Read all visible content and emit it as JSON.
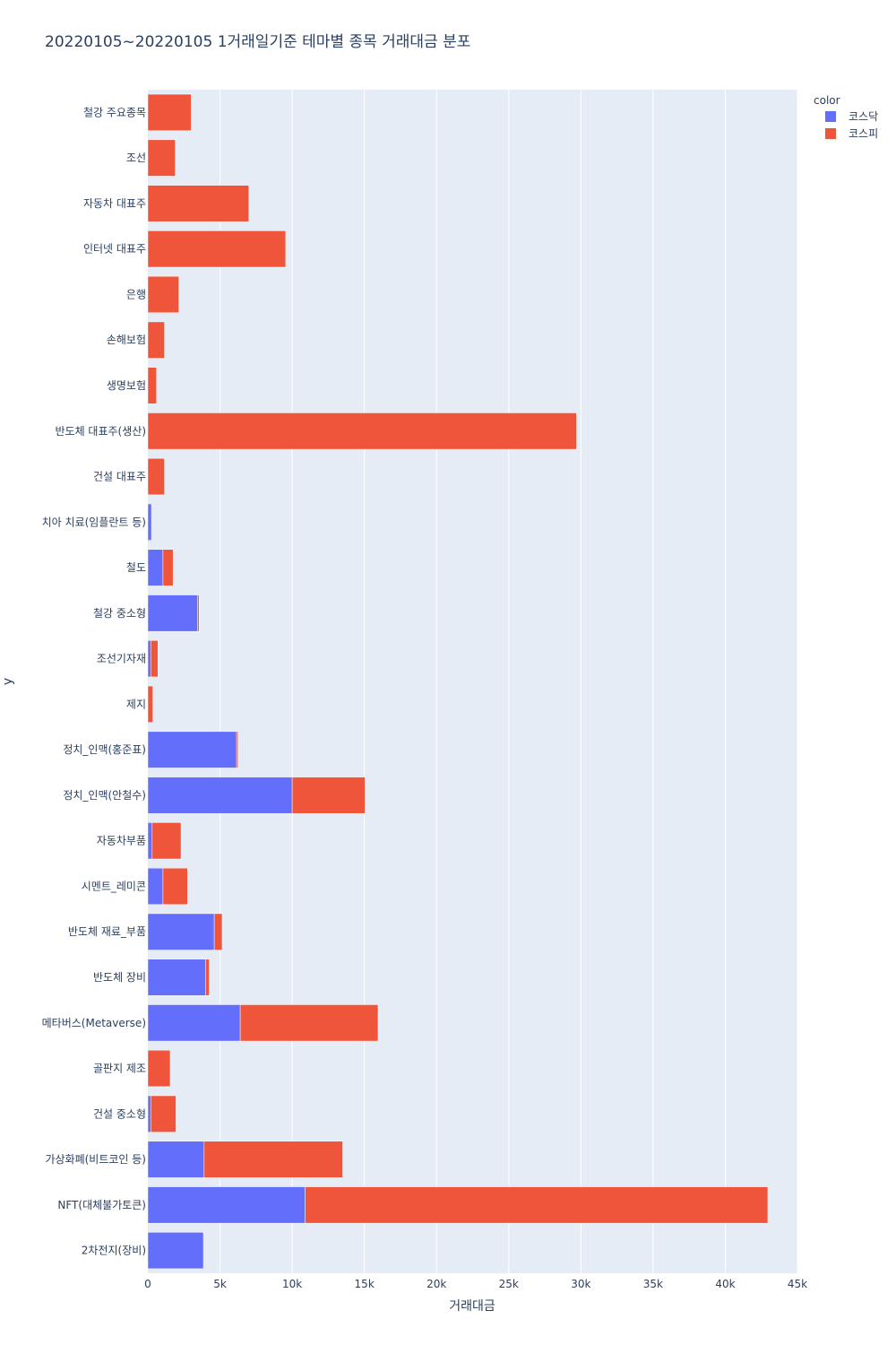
{
  "chart_data": {
    "type": "bar",
    "orientation": "horizontal",
    "barmode": "stack",
    "title": "20220105~20220105 1거래일기준 테마별 종목 거래대금 분포",
    "xlabel": "거래대금",
    "ylabel": "y",
    "xlim": [
      0,
      45000
    ],
    "x_ticks": [
      {
        "value": 0,
        "label": "0"
      },
      {
        "value": 5000,
        "label": "5k"
      },
      {
        "value": 10000,
        "label": "10k"
      },
      {
        "value": 15000,
        "label": "15k"
      },
      {
        "value": 20000,
        "label": "20k"
      },
      {
        "value": 25000,
        "label": "25k"
      },
      {
        "value": 30000,
        "label": "30k"
      },
      {
        "value": 35000,
        "label": "35k"
      },
      {
        "value": 40000,
        "label": "40k"
      },
      {
        "value": 45000,
        "label": "45k"
      }
    ],
    "grid": true,
    "legend": {
      "title": "color",
      "position": "top-right"
    },
    "categories": [
      "철강 주요종목",
      "조선",
      "자동차 대표주",
      "인터넷 대표주",
      "은행",
      "손해보험",
      "생명보험",
      "반도체 대표주(생산)",
      "건설 대표주",
      "치아 치료(임플란트 등)",
      "철도",
      "철강 중소형",
      "조선기자재",
      "제지",
      "정치_인맥(홍준표)",
      "정치_인맥(안철수)",
      "자동차부품",
      "시멘트_레미콘",
      "반도체 재료_부품",
      "반도체 장비",
      "메타버스(Metaverse)",
      "골판지 제조",
      "건설 중소형",
      "가상화폐(비트코인 등)",
      "NFT(대체불가토큰)",
      "2차전지(장비)"
    ],
    "series": [
      {
        "name": "코스닥",
        "color": "#636efa",
        "values": [
          0,
          0,
          0,
          0,
          0,
          0,
          0,
          0,
          0,
          250,
          1050,
          3450,
          200,
          0,
          6150,
          10000,
          300,
          1050,
          4600,
          4000,
          6400,
          0,
          200,
          3900,
          10900,
          3850
        ]
      },
      {
        "name": "코스피",
        "color": "#ef553b",
        "values": [
          3000,
          1900,
          7000,
          9550,
          2150,
          1150,
          600,
          29700,
          1150,
          0,
          700,
          100,
          500,
          350,
          100,
          5050,
          2000,
          1700,
          550,
          250,
          9550,
          1550,
          1750,
          9600,
          32050,
          0
        ]
      }
    ]
  }
}
